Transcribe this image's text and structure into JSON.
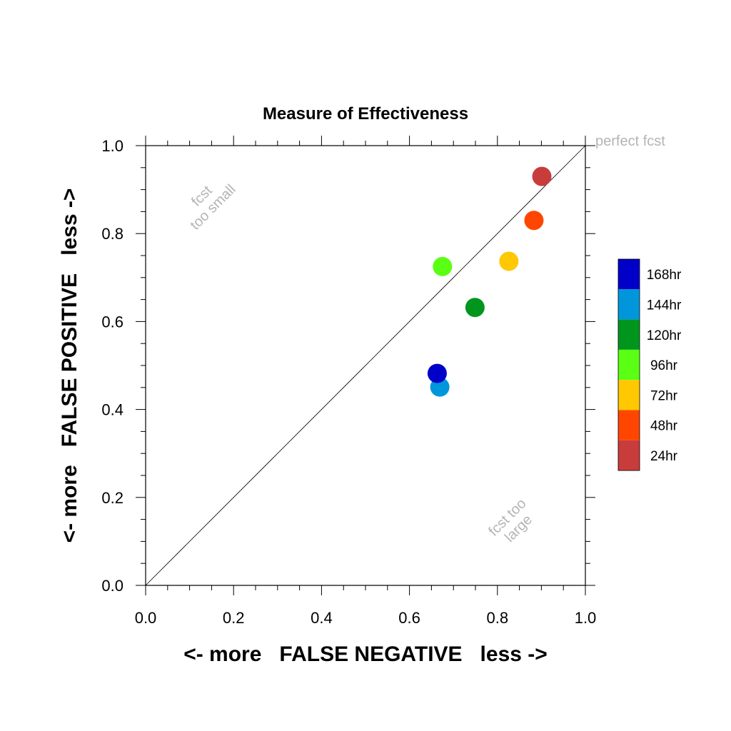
{
  "chart_data": {
    "type": "scatter",
    "title": "Measure of Effectiveness",
    "xlabel": "<- more   FALSE NEGATIVE   less ->",
    "ylabel": "<- more   FALSE POSITIVE   less ->",
    "xlim": [
      0.0,
      1.0
    ],
    "ylim": [
      0.0,
      1.0
    ],
    "xticks": [
      "0.0",
      "0.2",
      "0.4",
      "0.6",
      "0.8",
      "1.0"
    ],
    "yticks": [
      "0.0",
      "0.2",
      "0.4",
      "0.6",
      "0.8",
      "1.0"
    ],
    "grid": false,
    "legend_position": "right",
    "reference_line": "diagonal y = x",
    "annotations": {
      "perfect": "perfect fcst",
      "too_small": [
        "fcst",
        "too small"
      ],
      "too_large": [
        "fcst too",
        "large"
      ]
    },
    "series": [
      {
        "name": "168hr",
        "color": "#0000c8",
        "x": 0.663,
        "y": 0.482
      },
      {
        "name": "144hr",
        "color": "#0096dc",
        "x": 0.669,
        "y": 0.451
      },
      {
        "name": "120hr",
        "color": "#00961e",
        "x": 0.749,
        "y": 0.632
      },
      {
        "name": "96hr",
        "color": "#5aff14",
        "x": 0.675,
        "y": 0.725
      },
      {
        "name": "72hr",
        "color": "#ffc800",
        "x": 0.826,
        "y": 0.737
      },
      {
        "name": "48hr",
        "color": "#ff4600",
        "x": 0.883,
        "y": 0.83
      },
      {
        "name": "24hr",
        "color": "#c83c3c",
        "x": 0.901,
        "y": 0.93
      }
    ]
  }
}
